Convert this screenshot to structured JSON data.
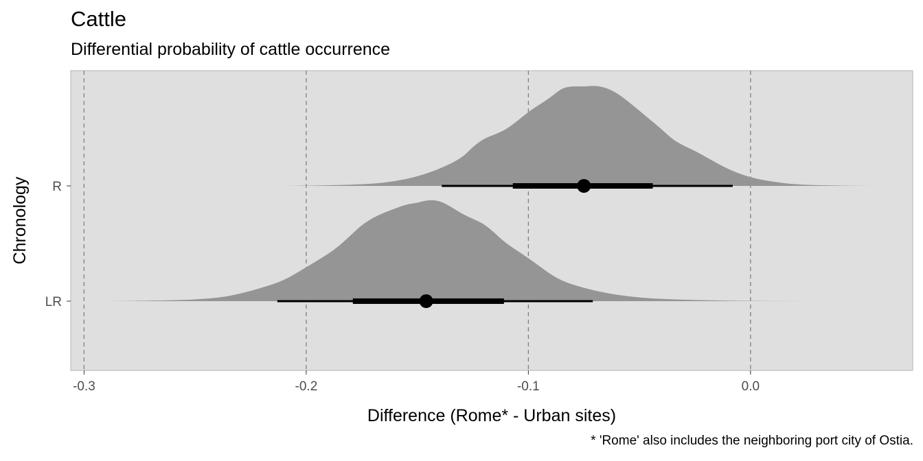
{
  "title": "Cattle",
  "subtitle": "Differential probability of cattle occurrence",
  "caption": "* 'Rome' also includes the neighboring port city of Ostia.",
  "colors": {
    "panel": "#dfdfdf",
    "density": "#959595",
    "interval": "#000000",
    "reference_line": "#7f7f7f",
    "axis_text": "#4d4d4d"
  },
  "chart_data": {
    "type": "halfeye",
    "xlabel": "Difference (Rome* - Urban sites)",
    "ylabel": "Chronology",
    "xlim": [
      -0.306,
      0.073
    ],
    "x_ticks": [
      -0.3,
      -0.2,
      -0.1,
      0.0
    ],
    "x_tick_labels": [
      "-0.3",
      "-0.2",
      "-0.1",
      "0.0"
    ],
    "reference_lines": [
      -0.3,
      -0.2,
      -0.1,
      0.0
    ],
    "categories": [
      "R",
      "LR"
    ],
    "series": [
      {
        "name": "R",
        "point": -0.075,
        "interval_66": [
          -0.107,
          -0.044
        ],
        "interval_95": [
          -0.139,
          -0.008
        ],
        "density": {
          "x": [
            -0.21,
            -0.19,
            -0.17,
            -0.16,
            -0.15,
            -0.14,
            -0.13,
            -0.125,
            -0.12,
            -0.115,
            -0.11,
            -0.105,
            -0.1,
            -0.095,
            -0.09,
            -0.085,
            -0.08,
            -0.075,
            -0.07,
            -0.065,
            -0.06,
            -0.055,
            -0.05,
            -0.045,
            -0.04,
            -0.035,
            -0.03,
            -0.025,
            -0.02,
            -0.01,
            0.0,
            0.01,
            0.02,
            0.035,
            0.055
          ],
          "y": [
            0.0,
            0.004,
            0.02,
            0.045,
            0.09,
            0.165,
            0.27,
            0.38,
            0.46,
            0.5,
            0.55,
            0.63,
            0.72,
            0.79,
            0.86,
            0.95,
            0.97,
            0.965,
            0.975,
            0.955,
            0.9,
            0.82,
            0.73,
            0.64,
            0.55,
            0.45,
            0.39,
            0.34,
            0.28,
            0.16,
            0.08,
            0.04,
            0.015,
            0.004,
            0.0
          ]
        }
      },
      {
        "name": "LR",
        "point": -0.146,
        "interval_66": [
          -0.179,
          -0.111
        ],
        "interval_95": [
          -0.213,
          -0.071
        ],
        "density": {
          "x": [
            -0.29,
            -0.26,
            -0.24,
            -0.23,
            -0.22,
            -0.21,
            -0.2,
            -0.19,
            -0.185,
            -0.18,
            -0.175,
            -0.17,
            -0.165,
            -0.16,
            -0.155,
            -0.15,
            -0.145,
            -0.14,
            -0.135,
            -0.13,
            -0.125,
            -0.12,
            -0.115,
            -0.11,
            -0.1,
            -0.09,
            -0.085,
            -0.08,
            -0.07,
            -0.06,
            -0.05,
            -0.04,
            -0.02,
            0.0,
            0.025
          ],
          "y": [
            0.0,
            0.005,
            0.03,
            0.07,
            0.13,
            0.2,
            0.33,
            0.46,
            0.54,
            0.64,
            0.74,
            0.81,
            0.86,
            0.9,
            0.94,
            0.955,
            0.985,
            0.975,
            0.92,
            0.85,
            0.8,
            0.75,
            0.66,
            0.56,
            0.42,
            0.26,
            0.2,
            0.16,
            0.1,
            0.06,
            0.035,
            0.02,
            0.008,
            0.002,
            0.0
          ]
        }
      }
    ]
  }
}
